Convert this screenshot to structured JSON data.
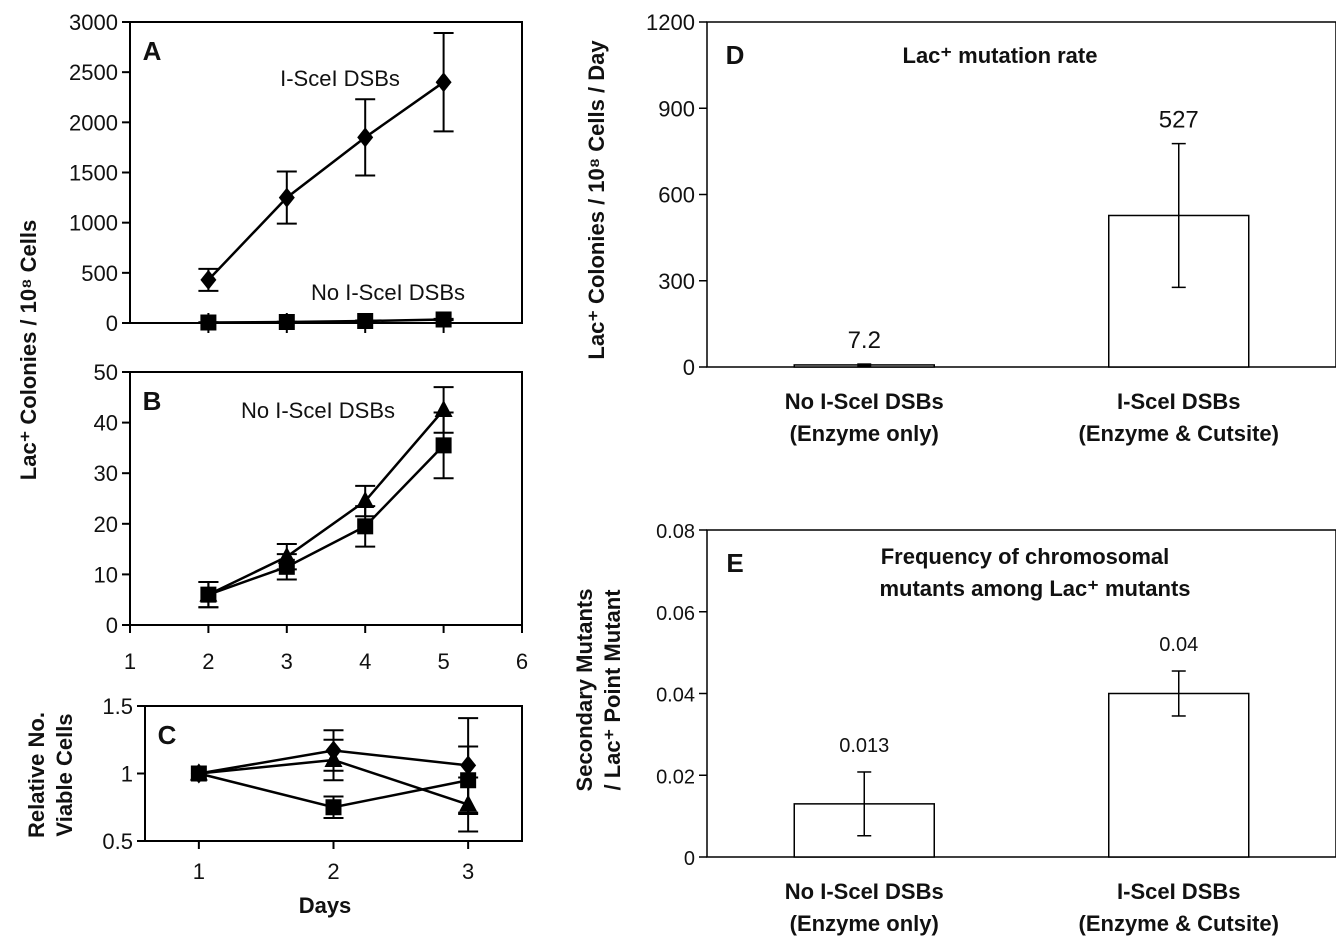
{
  "chart_data": [
    {
      "panel": "A",
      "type": "line",
      "title": "",
      "xlabel": "",
      "ylabel": "",
      "xlim": [
        1,
        6
      ],
      "ylim": [
        0,
        3000
      ],
      "yticks": [
        "0",
        "500",
        "1000",
        "1500",
        "2000",
        "2500",
        "3000"
      ],
      "annotations": [
        "I-SceI DSBs",
        "No I-SceI DSBs"
      ],
      "series": [
        {
          "marker": "diamond",
          "x": [
            2,
            3,
            4,
            5
          ],
          "values": [
            430,
            1250,
            1850,
            2400
          ],
          "err": [
            110,
            260,
            380,
            490
          ]
        },
        {
          "marker": "square",
          "x": [
            2,
            3,
            4,
            5
          ],
          "values": [
            5,
            10,
            20,
            35
          ],
          "err": [
            2,
            3,
            5,
            6
          ]
        }
      ]
    },
    {
      "panel": "B",
      "type": "line",
      "title": "",
      "xlim": [
        1,
        6
      ],
      "ylim": [
        0,
        50
      ],
      "yticks": [
        "0",
        "10",
        "20",
        "30",
        "40",
        "50"
      ],
      "xticks": [
        "1",
        "2",
        "3",
        "4",
        "5",
        "6"
      ],
      "annotations": [
        "No I-SceI DSBs"
      ],
      "series": [
        {
          "marker": "triangle",
          "x": [
            2,
            3,
            4,
            5
          ],
          "values": [
            6,
            13.5,
            24.5,
            42.5
          ],
          "err": [
            2.5,
            2.5,
            3,
            4.5
          ]
        },
        {
          "marker": "square",
          "x": [
            2,
            3,
            4,
            5
          ],
          "values": [
            6,
            11.5,
            19.5,
            35.5
          ],
          "err": [
            2.5,
            2.5,
            4,
            6.5
          ]
        }
      ]
    },
    {
      "panel": "C",
      "type": "line",
      "title": "",
      "xlabel": "Days",
      "ylabel": "Relative No. Viable Cells",
      "ylabel_lines": [
        "Relative No.",
        "Viable Cells"
      ],
      "xlim": [
        0.6,
        3.4
      ],
      "ylim": [
        0.5,
        1.5
      ],
      "yticks": [
        "0.5",
        "1",
        "1.5"
      ],
      "xticks": [
        "1",
        "2",
        "3"
      ],
      "series": [
        {
          "marker": "diamond",
          "x": [
            1,
            2,
            3
          ],
          "values": [
            1.0,
            1.17,
            1.06
          ],
          "err": [
            0,
            0.15,
            0.35
          ]
        },
        {
          "marker": "triangle",
          "x": [
            1,
            2,
            3
          ],
          "values": [
            1.0,
            1.1,
            0.77
          ],
          "err": [
            0,
            0.15,
            0.2
          ]
        },
        {
          "marker": "square",
          "x": [
            1,
            2,
            3
          ],
          "values": [
            1.0,
            0.75,
            0.95
          ],
          "err": [
            0,
            0.08,
            0.25
          ]
        }
      ]
    },
    {
      "panel": "D",
      "type": "bar",
      "title": "Lac⁺ mutation rate",
      "ylabel": "Lac⁺ Colonies / 10⁸ Cells / Day",
      "ylim": [
        0,
        1200
      ],
      "yticks": [
        "0",
        "300",
        "600",
        "900",
        "1200"
      ],
      "categories": [
        [
          "No I-SceI DSBs",
          "(Enzyme only)"
        ],
        [
          "I-SceI DSBs",
          "(Enzyme & Cutsite)"
        ]
      ],
      "values": [
        7.2,
        527
      ],
      "err": [
        3,
        250
      ],
      "value_labels": [
        "7.2",
        "527"
      ]
    },
    {
      "panel": "E",
      "type": "bar",
      "title": "Frequency of chromosomal mutants among Lac⁺ mutants",
      "title_lines": [
        "Frequency of chromosomal",
        "mutants among Lac⁺ mutants"
      ],
      "ylabel": "Secondary Mutants / Lac⁺ Point Mutant",
      "ylabel_lines": [
        "Secondary Mutants",
        "/ Lac⁺ Point Mutant"
      ],
      "ylim": [
        0,
        0.08
      ],
      "yticks": [
        "0",
        "0.02",
        "0.04",
        "0.06",
        "0.08"
      ],
      "categories": [
        [
          "No I-SceI DSBs",
          "(Enzyme only)"
        ],
        [
          "I-SceI DSBs",
          "(Enzyme & Cutsite)"
        ]
      ],
      "values": [
        0.013,
        0.04
      ],
      "err": [
        0.0078,
        0.0055
      ],
      "value_labels": [
        "0.013",
        "0.04"
      ]
    }
  ],
  "shared": {
    "ylabel_AB": "Lac⁺ Colonies / 10⁸ Cells"
  }
}
